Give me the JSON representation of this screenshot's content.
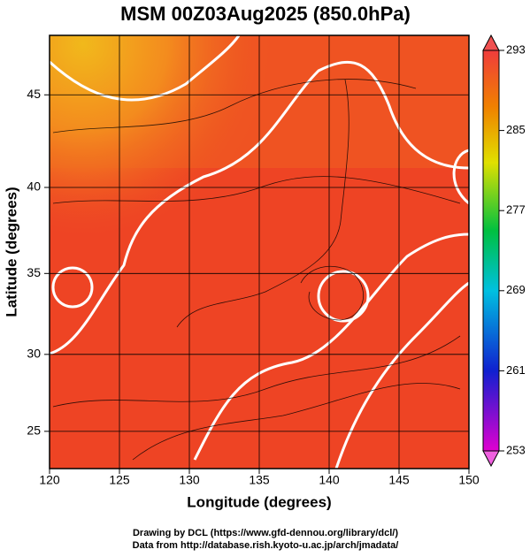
{
  "title": "MSM 00Z03Aug2025 (850.0hPa)",
  "map": {
    "xlabel": "Longitude (degrees)",
    "ylabel": "Latitude  (degrees)",
    "xlim": [
      120,
      150
    ],
    "ylim": [
      22.5,
      48
    ],
    "projection": "mercator",
    "xticks": [
      120,
      125,
      130,
      135,
      140,
      145,
      150
    ],
    "yticks": [
      25,
      30,
      35,
      40,
      45
    ],
    "grid": true
  },
  "colorbar": {
    "lim": [
      253,
      293
    ],
    "ticks": [
      253,
      261,
      269,
      277,
      285,
      293
    ]
  },
  "footer": [
    "Drawing by DCL (https://www.gfd-dennou.org/library/dcl/)",
    "Data from http://database.rish.kyoto-u.ac.jp/arch/jmadata/"
  ]
}
